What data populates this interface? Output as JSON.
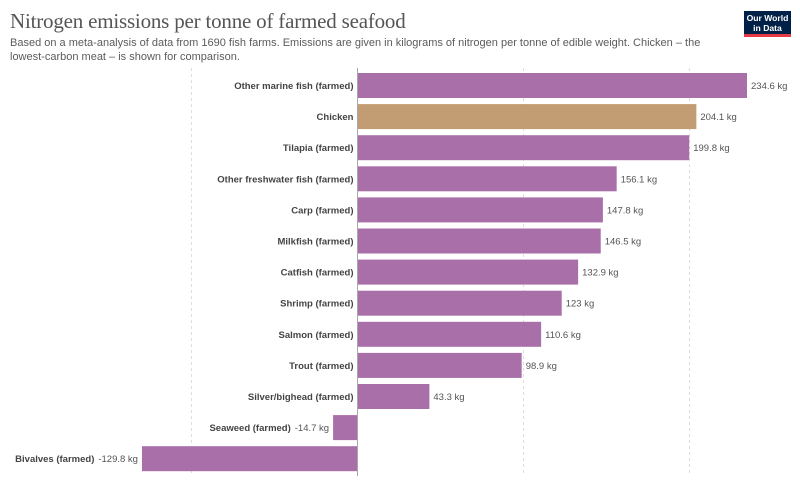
{
  "header": {
    "title": "Nitrogen emissions per tonne of farmed seafood",
    "subtitle": "Based on a meta-analysis of data from 1690 fish farms. Emissions are given in kilograms of nitrogen per tonne of edible weight. Chicken – the lowest-carbon meat – is shown for comparison."
  },
  "logo": {
    "line1": "Our World",
    "line2": "in Data"
  },
  "colors": {
    "farmed": "#a96fa8",
    "comparison": "#c29c73",
    "grid": "#dddddd",
    "zero_line": "#a8a8a8"
  },
  "chart_data": {
    "type": "bar",
    "orientation": "horizontal",
    "title": "Nitrogen emissions per tonne of farmed seafood",
    "unit": "kg",
    "xlim": [
      -129.8,
      234.6
    ],
    "grid": true,
    "categories": [
      "Other marine fish (farmed)",
      "Chicken",
      "Tilapia (farmed)",
      "Other freshwater fish (farmed)",
      "Carp (farmed)",
      "Milkfish (farmed)",
      "Catfish (farmed)",
      "Shrimp (farmed)",
      "Salmon (farmed)",
      "Trout (farmed)",
      "Silver/bighead (farmed)",
      "Seaweed (farmed)",
      "Bivalves (farmed)"
    ],
    "values": [
      234.6,
      204.1,
      199.8,
      156.1,
      147.8,
      146.5,
      132.9,
      123,
      110.6,
      98.9,
      43.3,
      -14.7,
      -129.8
    ],
    "value_labels": [
      "234.6 kg",
      "204.1 kg",
      "199.8 kg",
      "156.1 kg",
      "147.8 kg",
      "146.5 kg",
      "132.9 kg",
      "123 kg",
      "110.6 kg",
      "98.9 kg",
      "43.3 kg",
      "-14.7 kg",
      "-129.8 kg"
    ],
    "highlight": "Chicken",
    "grid_lines": [
      -100,
      0,
      100,
      200
    ]
  }
}
